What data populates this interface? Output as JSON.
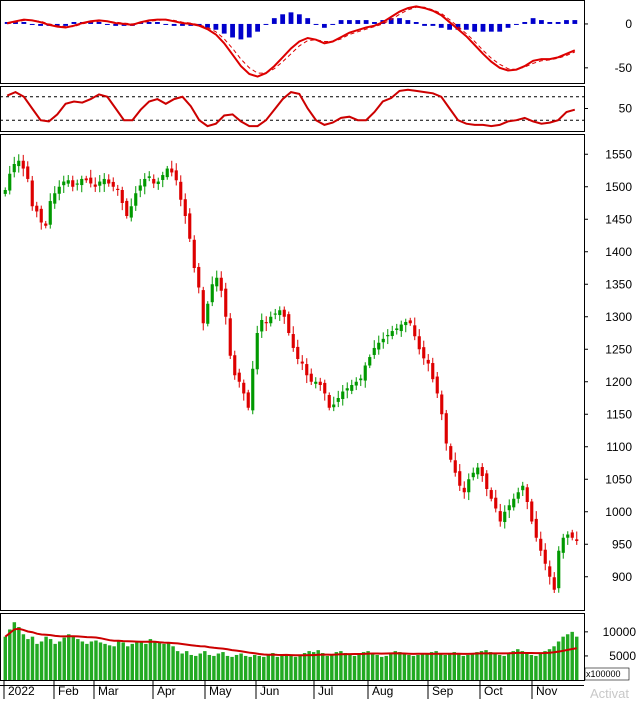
{
  "watermark": "Activat",
  "chart_data": [
    {
      "type": "line",
      "panel": "macd",
      "y_ticks": [
        "0",
        "-50"
      ],
      "ylim": [
        -65,
        25
      ],
      "histogram_color": "#0000cc",
      "lines": [
        {
          "style": "solid",
          "color": "#dd0000",
          "values": [
            1,
            3,
            5,
            4,
            2,
            -1,
            -3,
            -4,
            -2,
            1,
            3,
            4,
            3,
            1,
            0,
            -1,
            2,
            4,
            5,
            5,
            3,
            1,
            0,
            -2,
            -6,
            -12,
            -22,
            -35,
            -48,
            -57,
            -60,
            -56,
            -48,
            -38,
            -28,
            -20,
            -16,
            -18,
            -22,
            -20,
            -15,
            -10,
            -7,
            -4,
            -2,
            2,
            8,
            14,
            18,
            20,
            18,
            15,
            10,
            2,
            -6,
            -14,
            -24,
            -34,
            -43,
            -50,
            -53,
            -52,
            -48,
            -42,
            -40,
            -40,
            -38,
            -34,
            -30
          ]
        },
        {
          "style": "dashed",
          "color": "#dd0000",
          "values": [
            0,
            2,
            4,
            4,
            3,
            0,
            -2,
            -3,
            -3,
            0,
            2,
            3,
            3,
            2,
            1,
            0,
            1,
            3,
            4,
            5,
            4,
            2,
            1,
            -1,
            -4,
            -9,
            -17,
            -28,
            -40,
            -50,
            -56,
            -56,
            -51,
            -43,
            -34,
            -25,
            -19,
            -18,
            -20,
            -20,
            -17,
            -12,
            -9,
            -6,
            -3,
            0,
            5,
            11,
            16,
            19,
            19,
            16,
            12,
            5,
            -3,
            -11,
            -20,
            -30,
            -39,
            -46,
            -51,
            -52,
            -49,
            -45,
            -42,
            -41,
            -39,
            -36,
            -32
          ]
        }
      ]
    },
    {
      "type": "line",
      "panel": "oscillator",
      "y_ticks": [
        "50"
      ],
      "ylim": [
        15,
        85
      ],
      "reference_levels": [
        70,
        30
      ],
      "lines": [
        {
          "style": "solid",
          "color": "#cc0000",
          "values": [
            72,
            78,
            70,
            50,
            30,
            28,
            40,
            58,
            62,
            60,
            66,
            74,
            70,
            50,
            30,
            30,
            48,
            62,
            66,
            58,
            66,
            70,
            54,
            30,
            20,
            24,
            38,
            40,
            28,
            20,
            20,
            30,
            48,
            66,
            78,
            75,
            50,
            30,
            22,
            26,
            34,
            36,
            30,
            30,
            44,
            62,
            68,
            80,
            82,
            80,
            78,
            76,
            70,
            50,
            30,
            24,
            22,
            22,
            20,
            22,
            28,
            30,
            34,
            28,
            24,
            26,
            30,
            44,
            48
          ]
        }
      ]
    },
    {
      "type": "candlestick",
      "panel": "price",
      "x_ticks": [
        "2022",
        "Feb",
        "Mar",
        "Apr",
        "May",
        "Jun",
        "Jul",
        "Aug",
        "Sep",
        "Oct",
        "Nov"
      ],
      "y_ticks": [
        "1550",
        "1500",
        "1450",
        "1400",
        "1350",
        "1300",
        "1250",
        "1200",
        "1150",
        "1100",
        "1050",
        "1000",
        "950",
        "900"
      ],
      "ylim": [
        855,
        1575
      ],
      "up_color": "#009900",
      "down_color": "#dd0000",
      "close": [
        1495,
        1520,
        1535,
        1540,
        1528,
        1512,
        1470,
        1462,
        1445,
        1440,
        1478,
        1490,
        1500,
        1508,
        1510,
        1500,
        1505,
        1512,
        1510,
        1505,
        1500,
        1508,
        1512,
        1505,
        1500,
        1495,
        1475,
        1455,
        1470,
        1490,
        1502,
        1512,
        1516,
        1505,
        1508,
        1518,
        1528,
        1522,
        1510,
        1480,
        1455,
        1420,
        1375,
        1345,
        1290,
        1320,
        1350,
        1360,
        1340,
        1300,
        1240,
        1210,
        1200,
        1182,
        1160,
        1220,
        1275,
        1295,
        1290,
        1300,
        1305,
        1310,
        1300,
        1275,
        1252,
        1235,
        1228,
        1210,
        1200,
        1200,
        1195,
        1182,
        1160,
        1165,
        1175,
        1185,
        1190,
        1195,
        1200,
        1205,
        1225,
        1238,
        1252,
        1260,
        1266,
        1272,
        1278,
        1282,
        1288,
        1292,
        1290,
        1270,
        1250,
        1236,
        1228,
        1204,
        1182,
        1150,
        1105,
        1080,
        1060,
        1040,
        1030,
        1050,
        1060,
        1068,
        1055,
        1035,
        1020,
        1005,
        985,
        1000,
        1010,
        1020,
        1030,
        1040,
        1015,
        985,
        960,
        940,
        920,
        900,
        880,
        940,
        960,
        965,
        960,
        955
      ]
    },
    {
      "type": "bar",
      "panel": "volume",
      "y_ticks": [
        "10000",
        "5000"
      ],
      "unit_label": "x100000",
      "ylim": [
        0,
        13500
      ],
      "bar_color": "#22aa22",
      "ma_color": "#cc0000",
      "values": [
        9000,
        10500,
        12000,
        11000,
        9500,
        8500,
        9000,
        7500,
        8000,
        9000,
        8500,
        7500,
        8000,
        8800,
        9500,
        9000,
        8500,
        8000,
        7500,
        8000,
        8200,
        7800,
        7500,
        7200,
        7000,
        8200,
        7800,
        7000,
        7500,
        7800,
        8000,
        7500,
        8500,
        8000,
        7800,
        7500,
        7600,
        7000,
        6000,
        5500,
        6000,
        5200,
        5000,
        5500,
        6000,
        5200,
        5000,
        5500,
        5800,
        5000,
        4800,
        5200,
        5500,
        5000,
        4800,
        5200,
        5000,
        4800,
        5200,
        5600,
        4800,
        5000,
        5200,
        5000,
        4800,
        5200,
        5600,
        6000,
        5800,
        6200,
        5600,
        5000,
        5200,
        5800,
        6000,
        5600,
        5200,
        5000,
        5600,
        5800,
        6000,
        5400,
        5200,
        4800,
        5000,
        5600,
        6000,
        5800,
        5400,
        5200,
        5000,
        5200,
        5400,
        5600,
        5800,
        6000,
        5400,
        5200,
        5600,
        5800,
        5400,
        5000,
        5200,
        5600,
        5800,
        6000,
        6200,
        5800,
        5400,
        5200,
        5000,
        5600,
        6000,
        6400,
        6000,
        5600,
        5200,
        5000,
        5600,
        6000,
        6400,
        7000,
        8000,
        9000,
        9500,
        10000,
        9000
      ]
    }
  ],
  "x_labels": [
    "2022",
    "Feb",
    "Mar",
    "Apr",
    "May",
    "Jun",
    "Jul",
    "Aug",
    "Sep",
    "Oct",
    "Nov"
  ],
  "macd_ticks": [
    "0",
    "-50"
  ],
  "osc_ticks": [
    "50"
  ],
  "price_ticks": [
    "1550",
    "1500",
    "1450",
    "1400",
    "1350",
    "1300",
    "1250",
    "1200",
    "1150",
    "1100",
    "1050",
    "1000",
    "950",
    "900"
  ],
  "volume_ticks": [
    "10000",
    "5000"
  ],
  "volume_unit": "x100000"
}
